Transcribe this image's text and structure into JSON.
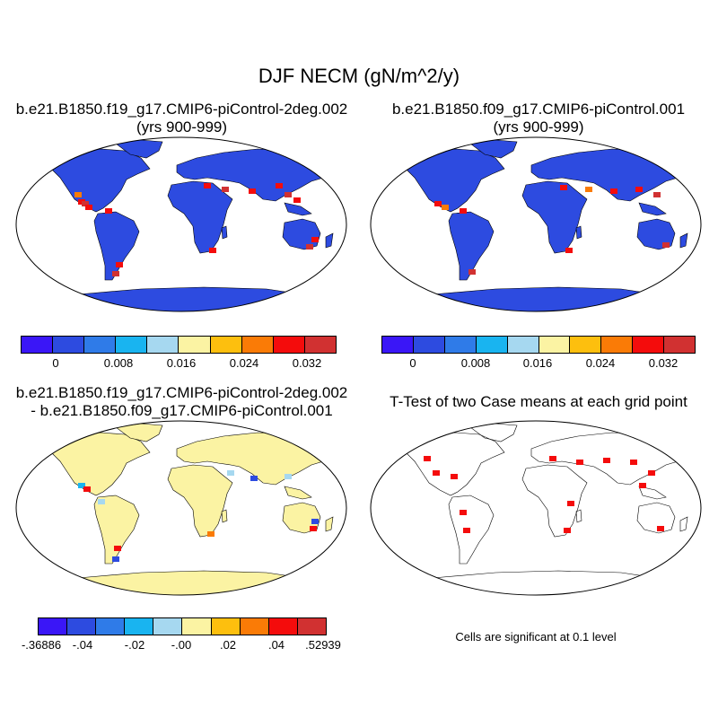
{
  "figure_title": "DJF NECM (gN/m^2/y)",
  "panels": [
    {
      "line1": "b.e21.B1850.f19_g17.CMIP6-piControl-2deg.002",
      "line2": "(yrs 900-999)"
    },
    {
      "line1": "b.e21.B1850.f09_g17.CMIP6-piControl.001",
      "line2": "(yrs 900-999)"
    },
    {
      "line1": "b.e21.B1850.f19_g17.CMIP6-piControl-2deg.002",
      "line2": "- b.e21.B1850.f09_g17.CMIP6-piControl.001"
    },
    {
      "line1": "T-Test of two Case means at each grid point",
      "line2": ""
    }
  ],
  "colorbar_top": {
    "colors": [
      "#3a16f7",
      "#2d4be0",
      "#2f7be8",
      "#19b4f0",
      "#a6d8f0",
      "#fbf3a3",
      "#fdbf0e",
      "#fa7b06",
      "#f40c0c",
      "#d13131"
    ],
    "labels": [
      "0",
      "0.008",
      "0.016",
      "0.024",
      "0.032"
    ]
  },
  "colorbar_bottom": {
    "colors": [
      "#3a16f7",
      "#2d4be0",
      "#2f7be8",
      "#19b4f0",
      "#a6d8f0",
      "#fbf3a3",
      "#fdbf0e",
      "#fa7b06",
      "#f40c0c",
      "#d13131"
    ],
    "labels": [
      "-.36886",
      "-.04",
      "-.02",
      "-.00",
      ".02",
      ".04",
      ".52939"
    ]
  },
  "significance_note": "Cells are significant at 0.1 level"
}
